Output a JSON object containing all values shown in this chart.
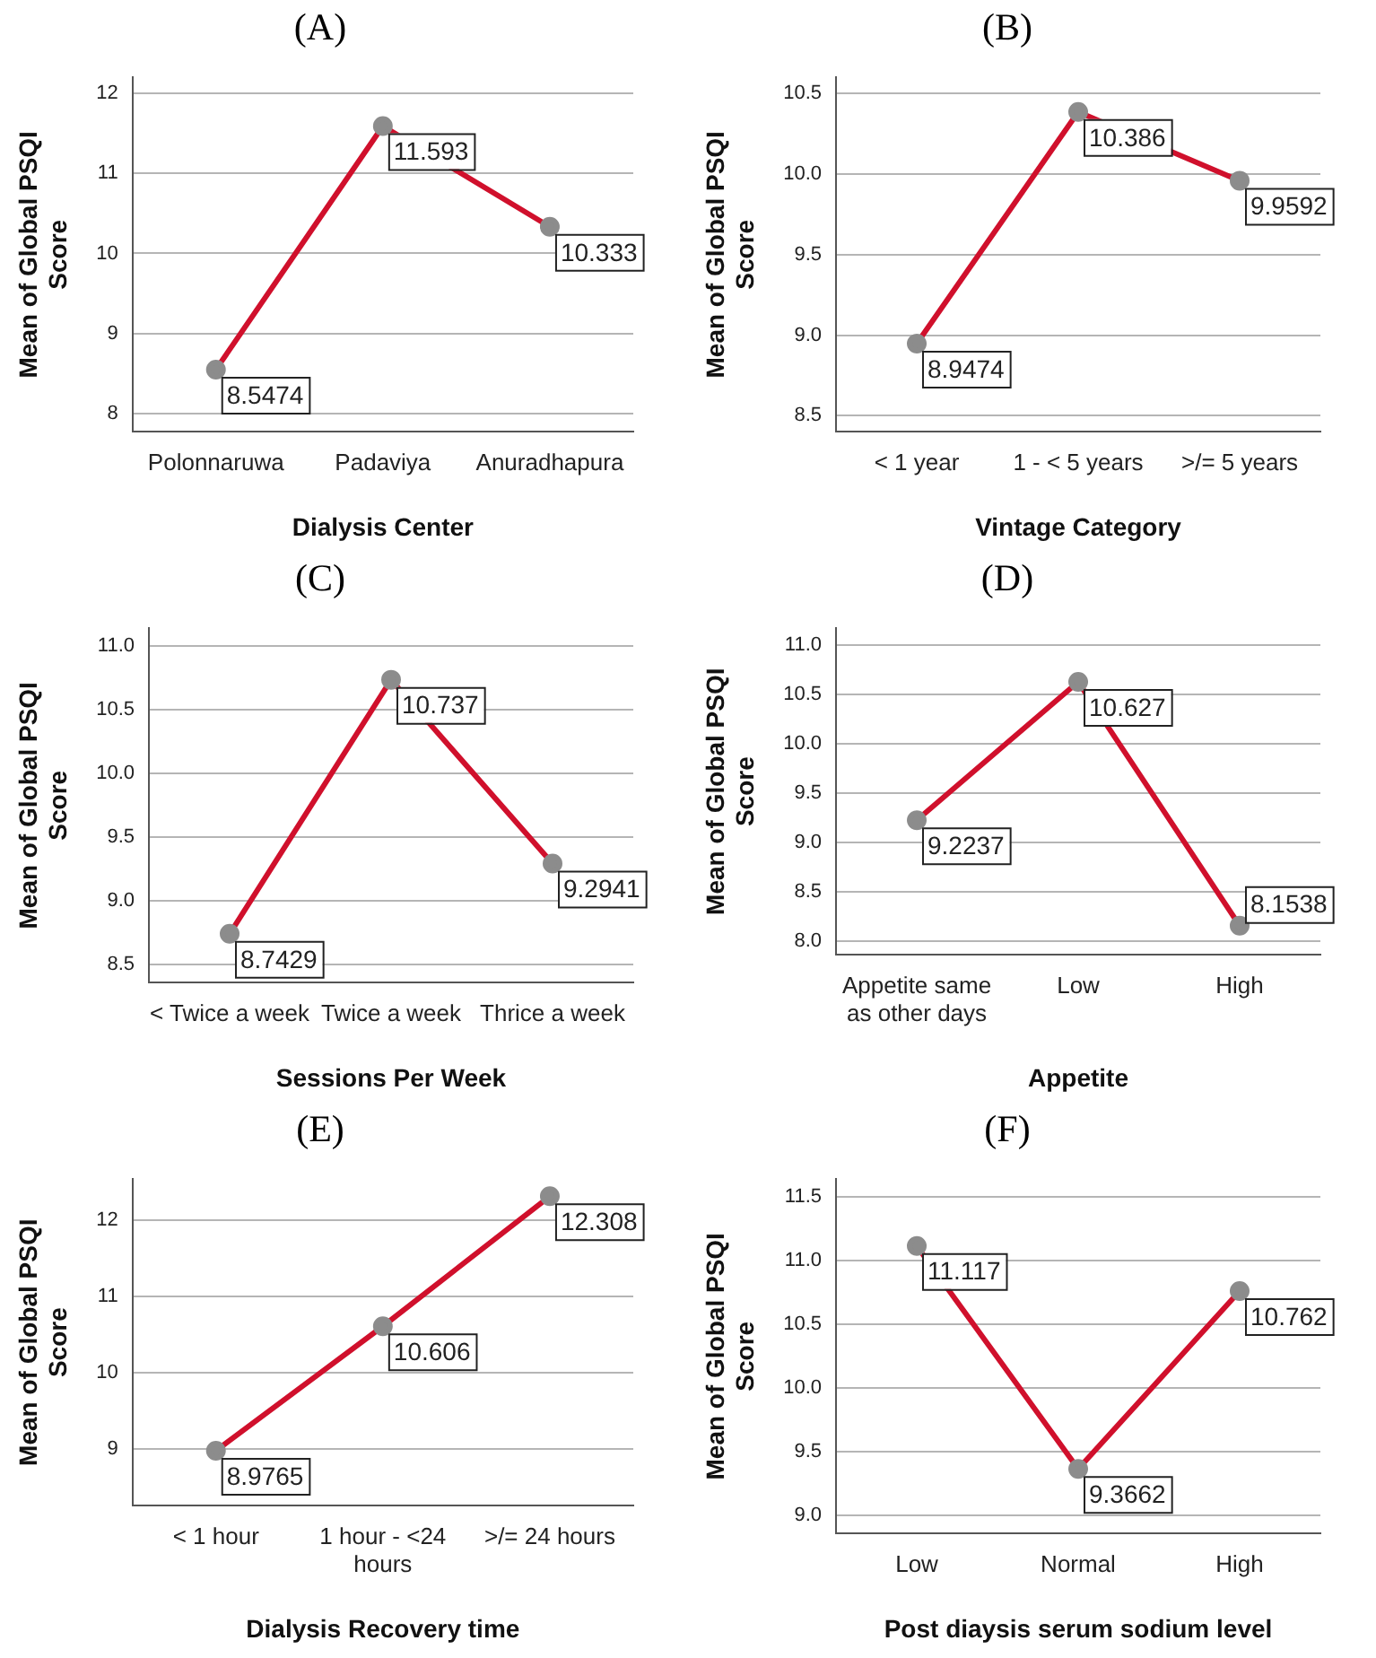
{
  "chart_data": [
    {
      "type": "line",
      "title": "(A)",
      "xlabel": "Dialysis Center",
      "ylabel": "Mean of Global PSQI Score",
      "categories": [
        "Polonnaruwa",
        "Padaviya",
        "Anuradhapura"
      ],
      "values": [
        8.5474,
        11.593,
        10.333
      ],
      "color": "#d0102c",
      "ylim": [
        7.77,
        12.2
      ],
      "yticks": [
        8,
        9,
        10,
        11,
        12
      ],
      "grid": "y",
      "marker": "circle",
      "data_labels": true
    },
    {
      "type": "line",
      "title": "(B)",
      "xlabel": "Vintage Category",
      "ylabel": "Mean of Global PSQI Score",
      "categories": [
        "< 1 year",
        "1 - < 5 years",
        ">/= 5 years"
      ],
      "values": [
        8.9474,
        10.386,
        9.9592
      ],
      "color": "#d0102c",
      "ylim": [
        8.4,
        10.6
      ],
      "yticks": [
        {
          "value": 8.5,
          "label": "8.5"
        },
        {
          "value": 9,
          "label": "9.0"
        },
        {
          "value": 9.5,
          "label": "9.5"
        },
        {
          "value": 10,
          "label": "10.0"
        },
        {
          "value": 10.5,
          "label": "10.5"
        }
      ],
      "grid": "y",
      "marker": "circle",
      "data_labels": true
    },
    {
      "type": "line",
      "title": "(C)",
      "xlabel": "Sessions Per Week",
      "ylabel": "Mean of Global PSQI Score",
      "categories": [
        "< Twice a week",
        "Twice a week",
        "Thrice a week"
      ],
      "values": [
        8.7429,
        10.737,
        9.2941
      ],
      "color": "#d0102c",
      "ylim": [
        8.36,
        11.14
      ],
      "yticks": [
        {
          "value": 8.5,
          "label": "8.5"
        },
        {
          "value": 9,
          "label": "9.0"
        },
        {
          "value": 9.5,
          "label": "9.5"
        },
        {
          "value": 10,
          "label": "10.0"
        },
        {
          "value": 10.5,
          "label": "10.5"
        },
        {
          "value": 11,
          "label": "11.0"
        }
      ],
      "grid": "y",
      "marker": "circle",
      "data_labels": true
    },
    {
      "type": "line",
      "title": "(D)",
      "xlabel": "Appetite",
      "ylabel": "Mean of Global PSQI Score",
      "categories": [
        "Appetite same as other days",
        "Low",
        "High"
      ],
      "values": [
        9.2237,
        10.627,
        8.1538
      ],
      "color": "#d0102c",
      "ylim": [
        7.86,
        11.17
      ],
      "yticks": [
        {
          "value": 8,
          "label": "8.0"
        },
        {
          "value": 8.5,
          "label": "8.5"
        },
        {
          "value": 9,
          "label": "9.0"
        },
        {
          "value": 9.5,
          "label": "9.5"
        },
        {
          "value": 10,
          "label": "10.0"
        },
        {
          "value": 10.5,
          "label": "10.5"
        },
        {
          "value": 11,
          "label": "11.0"
        }
      ],
      "grid": "y",
      "marker": "circle",
      "data_labels": true
    },
    {
      "type": "line",
      "title": "(E)",
      "xlabel": "Dialysis Recovery time",
      "ylabel": "Mean of Global PSQI Score",
      "categories": [
        "< 1 hour",
        "1 hour - <24 hours",
        ">/= 24 hours"
      ],
      "values": [
        8.9765,
        10.606,
        12.308
      ],
      "color": "#d0102c",
      "ylim": [
        8.26,
        12.53
      ],
      "yticks": [
        9,
        10,
        11,
        12
      ],
      "grid": "y",
      "marker": "circle",
      "data_labels": true
    },
    {
      "type": "line",
      "title": "(F)",
      "xlabel": "Post diaysis serum sodium level",
      "ylabel": "Mean of Global PSQI Score",
      "categories": [
        "Low",
        "Normal",
        "High"
      ],
      "values": [
        11.117,
        9.3662,
        10.762
      ],
      "color": "#d0102c",
      "ylim": [
        8.86,
        11.64
      ],
      "yticks": [
        {
          "value": 9,
          "label": "9.0"
        },
        {
          "value": 9.5,
          "label": "9.5"
        },
        {
          "value": 10,
          "label": "10.0"
        },
        {
          "value": 10.5,
          "label": "10.5"
        },
        {
          "value": 11,
          "label": "11.0"
        },
        {
          "value": 11.5,
          "label": "11.5"
        }
      ],
      "grid": "y",
      "marker": "circle",
      "data_labels": true
    }
  ]
}
